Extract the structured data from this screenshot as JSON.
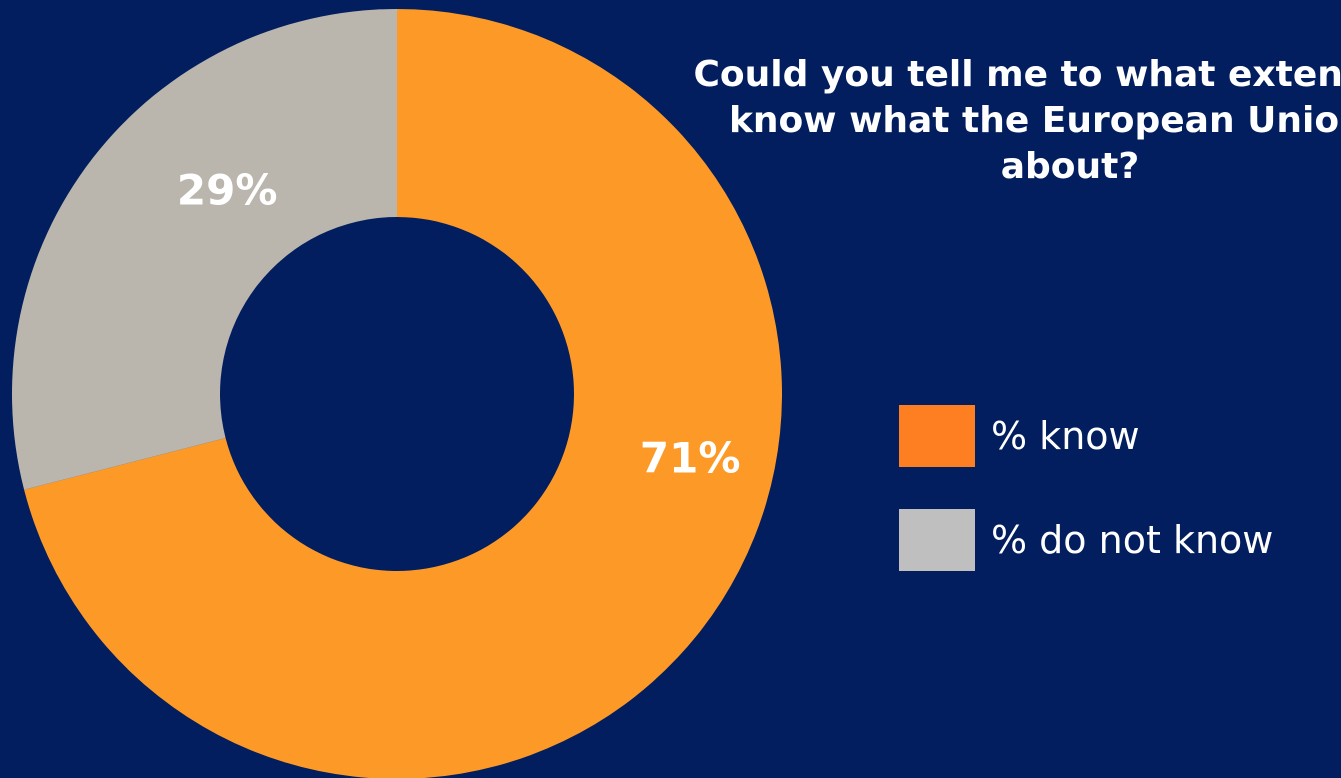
{
  "chart_data": {
    "type": "pie",
    "variant": "donut",
    "title": "Could you tell me to what extent you\nknow what the European Union is\nabout?",
    "categories": [
      "% know",
      "% do not know"
    ],
    "values": [
      71,
      29
    ],
    "data_labels": [
      "71%",
      "29%"
    ],
    "colors": [
      "#fd9a27",
      "#bab6ae"
    ],
    "legend": {
      "placement": "right",
      "entries": [
        {
          "label": "% know",
          "color": "#fe7f22"
        },
        {
          "label": "% do not know",
          "color": "#bfbfbf"
        }
      ]
    },
    "background": "#021e5e"
  }
}
